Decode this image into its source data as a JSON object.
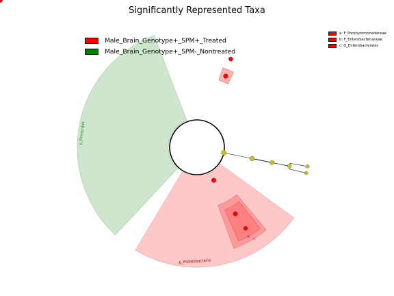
{
  "title": "Significantly Represented Taxa",
  "legend": [
    {
      "label": "Male_Brain_Genotype+_SPM+_Treated",
      "color": "#ff0000"
    },
    {
      "label": "Male_Brain_Genotype+_SPM-_Nontreated",
      "color": "#008000"
    }
  ],
  "key": [
    {
      "label": "a: F_Porphyromonadaceae",
      "color": "#ff0000"
    },
    {
      "label": "b: F_Enterobacteriaceae",
      "color": "#ff0000"
    },
    {
      "label": "c: O_Enterobacterales",
      "color": "#ff0000"
    }
  ],
  "sectors": [
    {
      "label": "p_Firmicutes",
      "group": "Male_Brain_Genotype+_SPM-_Nontreated",
      "color": "#cde6cd"
    },
    {
      "label": "p_Proteobacteria",
      "group": "Male_Brain_Genotype+_SPM+_Treated",
      "color": "#ffc8c8"
    }
  ],
  "clade_labels": [
    {
      "label": "a",
      "color": "#ffb3b3"
    },
    {
      "label": "b",
      "color": "#ff8080"
    },
    {
      "label": "c",
      "color": "#ff9a9a"
    }
  ],
  "colors": {
    "node": "#c8c21e",
    "treated_node": "#ff0000",
    "nontreated_node": "#008000"
  }
}
